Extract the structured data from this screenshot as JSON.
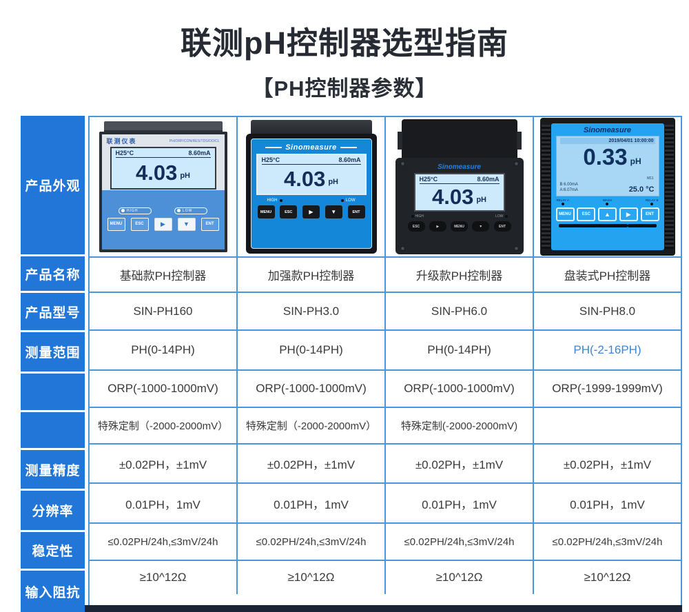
{
  "colors": {
    "accent": "#2176d8",
    "grid": "#4a96dc",
    "hl": "#3a86d8",
    "darkbar": "#1a2434"
  },
  "page": {
    "title": "联测pH控制器选型指南",
    "subtitle": "【PH控制器参数】"
  },
  "row_headers": [
    "产品外观",
    "产品名称",
    "产品型号",
    "测量范围",
    "",
    "",
    "测量精度",
    "分辨率",
    "稳定性",
    "输入阻抗"
  ],
  "table": {
    "rows": [
      {
        "name": "product-name",
        "cells": [
          "基础款PH控制器",
          "加强款PH控制器",
          "升级款PH控制器",
          "盘装式PH控制器"
        ]
      },
      {
        "name": "product-model",
        "cells": [
          "SIN-PH160",
          "SIN-PH3.0",
          "SIN-PH6.0",
          "SIN-PH8.0"
        ]
      },
      {
        "name": "ph-range",
        "cells": [
          "PH(0-14PH)",
          "PH(0-14PH)",
          "PH(0-14PH)",
          "PH(-2-16PH)"
        ]
      },
      {
        "name": "orp-range",
        "cells": [
          "ORP(-1000-1000mV)",
          "ORP(-1000-1000mV)",
          "ORP(-1000-1000mV)",
          "ORP(-1999-1999mV)"
        ]
      },
      {
        "name": "custom-range",
        "cells": [
          "特殊定制（-2000-2000mV）",
          "特殊定制（-2000-2000mV）",
          "特殊定制(-2000-2000mV)",
          ""
        ]
      },
      {
        "name": "accuracy",
        "cells": [
          "±0.02PH，±1mV",
          "±0.02PH，±1mV",
          "±0.02PH，±1mV",
          "±0.02PH，±1mV"
        ]
      },
      {
        "name": "resolution",
        "cells": [
          "0.01PH，1mV",
          "0.01PH，1mV",
          "0.01PH，1mV",
          "0.01PH，1mV"
        ]
      },
      {
        "name": "stability",
        "cells": [
          "≤0.02PH/24h,≤3mV/24h",
          "≤0.02PH/24h,≤3mV/24h",
          "≤0.02PH/24h,≤3mV/24h",
          "≤0.02PH/24h,≤3mV/24h"
        ]
      },
      {
        "name": "impedance",
        "cells": [
          "≥10^12Ω",
          "≥10^12Ω",
          "≥10^12Ω",
          "≥10^12Ω"
        ]
      }
    ]
  },
  "devices": [
    {
      "brand": "联测仪表",
      "brand_sub": "PH/ORP/CON/RES/TDS/DO/CL",
      "lcd": {
        "temp": "H25°C",
        "current": "8.60mA",
        "value": "4.03",
        "unit": "pH"
      },
      "indicators": [
        "HIGH",
        "LOW"
      ],
      "buttons": [
        "MENU",
        "ESC",
        "▶",
        "▼",
        "ENT"
      ]
    },
    {
      "brand": "Sinomeasure",
      "lcd": {
        "temp": "H25°C",
        "current": "8.60mA",
        "value": "4.03",
        "unit": "pH"
      },
      "indicators": [
        "HIGH",
        "LOW"
      ],
      "buttons": [
        "MENU",
        "ESC",
        "▶",
        "▼",
        "ENT"
      ]
    },
    {
      "brand": "Sinomeasure",
      "lcd": {
        "temp": "H25°C",
        "current": "8.60mA",
        "value": "4.03",
        "unit": "pH"
      },
      "indicators": [
        "HIGH",
        "LOW"
      ],
      "buttons": [
        "ESC",
        "▶",
        "MENU",
        "▼",
        "ENT"
      ]
    },
    {
      "brand": "Sinomeasure",
      "lcd": {
        "datetime": "2019/04/01 10:00:00",
        "value": "0.33",
        "unit": "pH",
        "mode": "M11",
        "out1": "B 6.00mA",
        "out2": "A:6.07mA",
        "temp": "25.0 °C"
      },
      "relays": [
        "RELAY A",
        "WASH",
        "RELAY B"
      ],
      "buttons": [
        "MENU",
        "ESC",
        "▲",
        "▶",
        "ENT"
      ]
    }
  ]
}
